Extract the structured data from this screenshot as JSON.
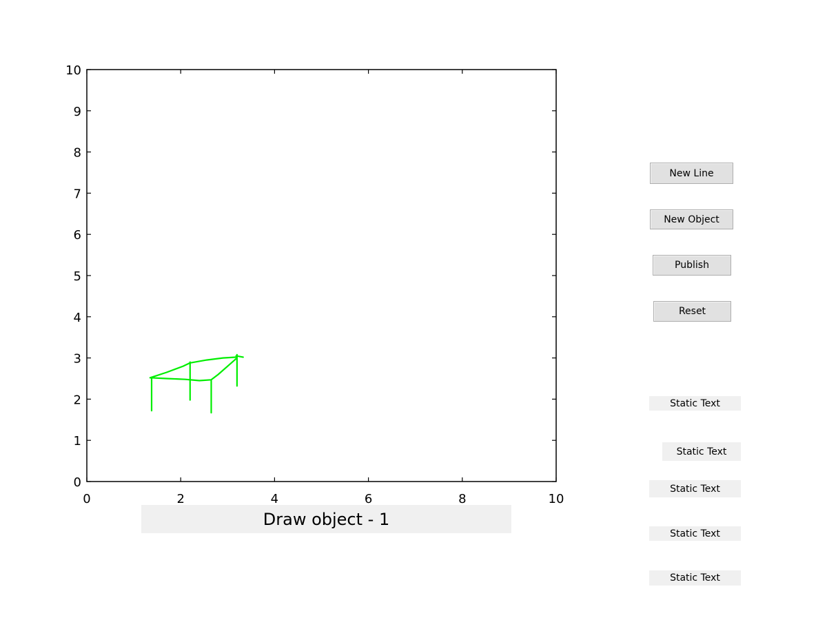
{
  "axes": {
    "xlim": [
      0,
      10
    ],
    "ylim": [
      0,
      10
    ],
    "x_ticks": [
      0,
      2,
      4,
      6,
      8,
      10
    ],
    "y_ticks": [
      0,
      1,
      2,
      3,
      4,
      5,
      6,
      7,
      8,
      9,
      10
    ],
    "stroke_color": "#00ee00"
  },
  "drawn_strokes": [
    [
      [
        1.35,
        2.52
      ],
      [
        1.7,
        2.65
      ],
      [
        2.05,
        2.8
      ],
      [
        2.2,
        2.88
      ],
      [
        2.55,
        2.95
      ],
      [
        2.9,
        3.0
      ],
      [
        3.2,
        3.02
      ]
    ],
    [
      [
        1.35,
        2.52
      ],
      [
        1.7,
        2.5
      ],
      [
        2.1,
        2.48
      ],
      [
        2.4,
        2.45
      ],
      [
        2.65,
        2.47
      ],
      [
        2.8,
        2.6
      ],
      [
        3.05,
        2.85
      ],
      [
        3.2,
        3.0
      ]
    ],
    [
      [
        1.38,
        2.52
      ],
      [
        1.38,
        1.72
      ]
    ],
    [
      [
        2.2,
        2.9
      ],
      [
        2.2,
        1.98
      ]
    ],
    [
      [
        2.65,
        2.45
      ],
      [
        2.65,
        1.67
      ]
    ],
    [
      [
        3.2,
        3.08
      ],
      [
        3.2,
        2.32
      ]
    ],
    [
      [
        3.18,
        3.05
      ],
      [
        3.33,
        3.02
      ]
    ]
  ],
  "buttons": {
    "new_line": "New Line",
    "new_object": "New Object",
    "publish": "Publish",
    "reset": "Reset"
  },
  "status_title": "Draw object - 1",
  "static_texts": [
    "Static Text",
    "Static Text",
    "Static Text",
    "Static Text",
    "Static Text"
  ]
}
